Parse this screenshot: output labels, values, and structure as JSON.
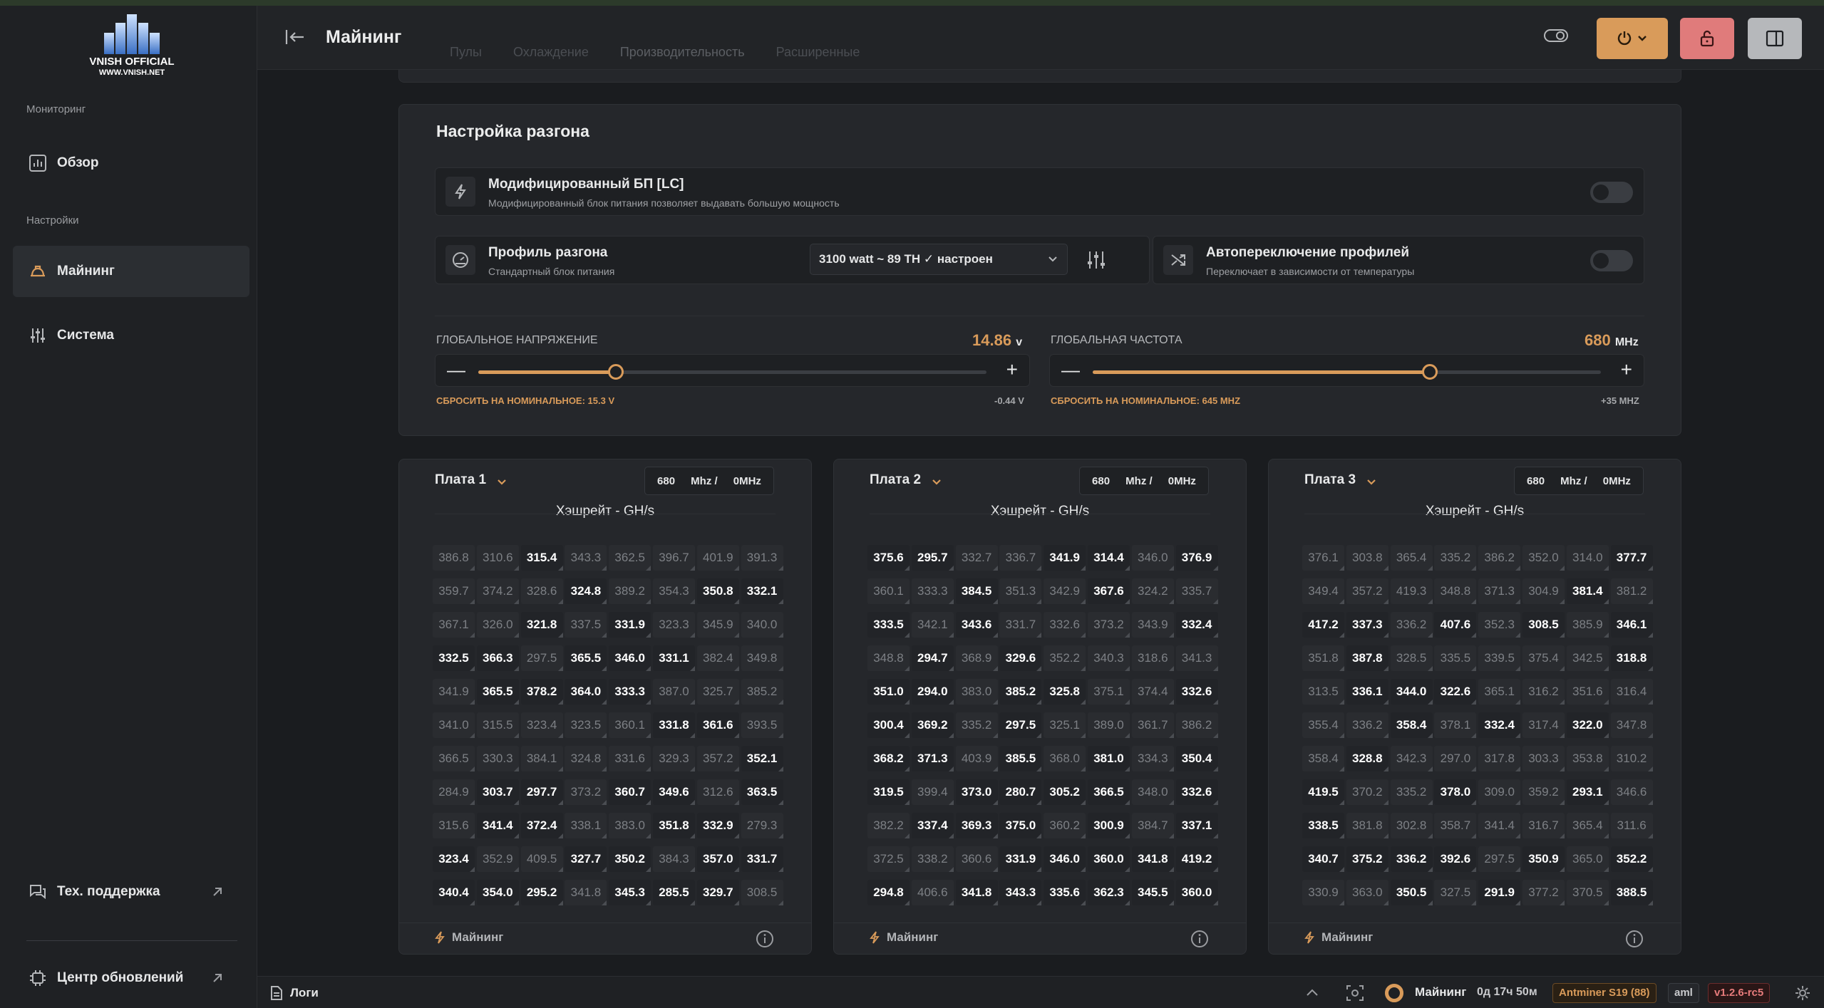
{
  "logo": {
    "line1": "VNISH OFFICIAL",
    "line2": "WWW.VNISH.NET"
  },
  "sidebar": {
    "section_monitoring": "Мониторинг",
    "item_overview": "Обзор",
    "section_settings": "Настройки",
    "item_mining": "Майнинг",
    "item_system": "Система",
    "item_support": "Тех. поддержка",
    "item_updates": "Центр обновлений"
  },
  "header": {
    "title": "Майнинг",
    "tabs": [
      "Пулы",
      "Охлаждение",
      "Производительность",
      "Расширенные"
    ]
  },
  "oc": {
    "title": "Настройка разгона",
    "psu_title": "Модифицированный БП [LC]",
    "psu_desc": "Модифицированный блок питания позволяет выдавать большую мощность",
    "profile_title": "Профиль разгона",
    "profile_desc": "Стандартный блок питания",
    "profile_value": "3100 watt ~ 89 TH ✓ настроен",
    "auto_title": "Автопереключение профилей",
    "auto_desc": "Переключает в зависимости от температуры",
    "voltage_label": "ГЛОБАЛЬНОЕ НАПРЯЖЕНИЕ",
    "voltage_value": "14.86",
    "voltage_unit": "v",
    "voltage_fill": 0.27,
    "voltage_reset": "СБРОСИТЬ НА НОМИНАЛЬНОЕ: 15.3 V",
    "voltage_delta": "-0.44 V",
    "freq_label": "ГЛОБАЛЬНАЯ ЧАСТОТА",
    "freq_value": "680",
    "freq_unit": "MHz",
    "freq_fill": 0.664,
    "freq_reset": "СБРОСИТЬ НА НОМИНАЛЬНОЕ: 645 MHZ",
    "freq_delta": "+35 MHZ"
  },
  "boards": [
    {
      "name": "Плата 1",
      "freq": "680",
      "freq_unit": "Mhz /",
      "offset": "0MHz",
      "subtitle": "Хэшрейт - GH/s",
      "footer": "Майнинг",
      "chips": [
        [
          "386.8",
          "310.6",
          "315.4",
          "343.3",
          "362.5",
          "396.7",
          "401.9",
          "391.3"
        ],
        [
          "359.7",
          "374.2",
          "328.6",
          "324.8",
          "389.2",
          "354.3",
          "350.8",
          "332.1"
        ],
        [
          "367.1",
          "326.0",
          "321.8",
          "337.5",
          "331.9",
          "323.3",
          "345.9",
          "340.0"
        ],
        [
          "332.5",
          "366.3",
          "297.5",
          "365.5",
          "346.0",
          "331.1",
          "382.4",
          "349.8"
        ],
        [
          "341.9",
          "365.5",
          "378.2",
          "364.0",
          "333.3",
          "387.0",
          "325.7",
          "385.2"
        ],
        [
          "341.0",
          "315.5",
          "323.4",
          "323.5",
          "360.1",
          "331.8",
          "361.6",
          "393.5"
        ],
        [
          "366.5",
          "330.3",
          "384.1",
          "324.8",
          "331.6",
          "329.3",
          "357.2",
          "352.1"
        ],
        [
          "284.9",
          "303.7",
          "297.7",
          "373.2",
          "360.7",
          "349.6",
          "312.6",
          "363.5"
        ],
        [
          "315.6",
          "341.4",
          "372.4",
          "338.1",
          "383.0",
          "351.8",
          "332.9",
          "279.3"
        ],
        [
          "323.4",
          "352.9",
          "409.5",
          "327.7",
          "350.2",
          "384.3",
          "357.0",
          "331.7"
        ],
        [
          "340.4",
          "354.0",
          "295.2",
          "341.8",
          "345.3",
          "285.5",
          "329.7",
          "308.5"
        ]
      ],
      "bold": [
        [
          0,
          0,
          1,
          0,
          0,
          0,
          0,
          0
        ],
        [
          0,
          0,
          0,
          1,
          0,
          0,
          1,
          1
        ],
        [
          0,
          0,
          1,
          0,
          1,
          0,
          0,
          0
        ],
        [
          1,
          1,
          0,
          1,
          1,
          1,
          0,
          0
        ],
        [
          0,
          1,
          1,
          1,
          1,
          0,
          0,
          0
        ],
        [
          0,
          0,
          0,
          0,
          0,
          1,
          1,
          0
        ],
        [
          0,
          0,
          0,
          0,
          0,
          0,
          0,
          1
        ],
        [
          0,
          1,
          1,
          0,
          1,
          1,
          0,
          1
        ],
        [
          0,
          1,
          1,
          0,
          0,
          1,
          1,
          0
        ],
        [
          1,
          0,
          0,
          1,
          1,
          0,
          1,
          1
        ],
        [
          1,
          1,
          1,
          0,
          1,
          1,
          1,
          0
        ]
      ]
    },
    {
      "name": "Плата 2",
      "freq": "680",
      "freq_unit": "Mhz /",
      "offset": "0MHz",
      "subtitle": "Хэшрейт - GH/s",
      "footer": "Майнинг",
      "chips": [
        [
          "375.6",
          "295.7",
          "332.7",
          "336.7",
          "341.9",
          "314.4",
          "346.0",
          "376.9"
        ],
        [
          "360.1",
          "333.3",
          "384.5",
          "351.3",
          "342.9",
          "367.6",
          "324.2",
          "335.7"
        ],
        [
          "333.5",
          "342.1",
          "343.6",
          "331.7",
          "332.6",
          "373.2",
          "343.9",
          "332.4"
        ],
        [
          "348.8",
          "294.7",
          "368.9",
          "329.6",
          "352.2",
          "340.3",
          "318.6",
          "341.3"
        ],
        [
          "351.0",
          "294.0",
          "383.0",
          "385.2",
          "325.8",
          "375.1",
          "374.4",
          "332.6"
        ],
        [
          "300.4",
          "369.2",
          "335.2",
          "297.5",
          "325.1",
          "389.0",
          "361.7",
          "386.2"
        ],
        [
          "368.2",
          "371.3",
          "403.9",
          "385.5",
          "368.0",
          "381.0",
          "334.3",
          "350.4"
        ],
        [
          "319.5",
          "399.4",
          "373.0",
          "280.7",
          "305.2",
          "366.5",
          "348.0",
          "332.6"
        ],
        [
          "382.2",
          "337.4",
          "369.3",
          "375.0",
          "360.2",
          "300.9",
          "384.7",
          "337.1"
        ],
        [
          "372.5",
          "338.2",
          "360.6",
          "331.9",
          "346.0",
          "360.0",
          "341.8",
          "419.2"
        ],
        [
          "294.8",
          "406.6",
          "341.8",
          "343.3",
          "335.6",
          "362.3",
          "345.5",
          "360.0"
        ]
      ],
      "bold": [
        [
          1,
          1,
          0,
          0,
          1,
          1,
          0,
          1
        ],
        [
          0,
          0,
          1,
          0,
          0,
          1,
          0,
          0
        ],
        [
          1,
          0,
          1,
          0,
          0,
          0,
          0,
          1
        ],
        [
          0,
          1,
          0,
          1,
          0,
          0,
          0,
          0
        ],
        [
          1,
          1,
          0,
          1,
          1,
          0,
          0,
          1
        ],
        [
          1,
          1,
          0,
          1,
          0,
          0,
          0,
          0
        ],
        [
          1,
          1,
          0,
          1,
          0,
          1,
          0,
          1
        ],
        [
          1,
          0,
          1,
          1,
          1,
          1,
          0,
          1
        ],
        [
          0,
          1,
          1,
          1,
          0,
          1,
          0,
          1
        ],
        [
          0,
          0,
          0,
          1,
          1,
          1,
          1,
          1
        ],
        [
          1,
          0,
          1,
          1,
          1,
          1,
          1,
          1
        ]
      ]
    },
    {
      "name": "Плата 3",
      "freq": "680",
      "freq_unit": "Mhz /",
      "offset": "0MHz",
      "subtitle": "Хэшрейт - GH/s",
      "footer": "Майнинг",
      "chips": [
        [
          "376.1",
          "303.8",
          "365.4",
          "335.2",
          "386.2",
          "352.0",
          "314.0",
          "377.7"
        ],
        [
          "349.4",
          "357.2",
          "419.3",
          "348.8",
          "371.3",
          "304.9",
          "381.4",
          "381.2"
        ],
        [
          "417.2",
          "337.3",
          "336.2",
          "407.6",
          "352.3",
          "308.5",
          "385.9",
          "346.1"
        ],
        [
          "351.8",
          "387.8",
          "328.5",
          "335.5",
          "339.5",
          "375.4",
          "342.5",
          "318.8"
        ],
        [
          "313.5",
          "336.1",
          "344.0",
          "322.6",
          "365.1",
          "316.2",
          "351.6",
          "316.4"
        ],
        [
          "355.4",
          "336.2",
          "358.4",
          "378.1",
          "332.4",
          "317.4",
          "322.0",
          "347.8"
        ],
        [
          "358.4",
          "328.8",
          "342.3",
          "297.0",
          "317.8",
          "303.3",
          "353.8",
          "310.2"
        ],
        [
          "419.5",
          "370.2",
          "335.2",
          "378.0",
          "309.0",
          "359.2",
          "293.1",
          "346.6"
        ],
        [
          "338.5",
          "381.8",
          "302.8",
          "358.7",
          "341.4",
          "316.7",
          "365.4",
          "311.6"
        ],
        [
          "340.7",
          "375.2",
          "336.2",
          "392.6",
          "297.5",
          "350.9",
          "365.0",
          "352.2"
        ],
        [
          "330.9",
          "363.0",
          "350.5",
          "327.5",
          "291.9",
          "377.2",
          "370.5",
          "388.5"
        ]
      ],
      "bold": [
        [
          0,
          0,
          0,
          0,
          0,
          0,
          0,
          1
        ],
        [
          0,
          0,
          0,
          0,
          0,
          0,
          1,
          0
        ],
        [
          1,
          1,
          0,
          1,
          0,
          1,
          0,
          1
        ],
        [
          0,
          1,
          0,
          0,
          0,
          0,
          0,
          1
        ],
        [
          0,
          1,
          1,
          1,
          0,
          0,
          0,
          0
        ],
        [
          0,
          0,
          1,
          0,
          1,
          0,
          1,
          0
        ],
        [
          0,
          1,
          0,
          0,
          0,
          0,
          0,
          0
        ],
        [
          1,
          0,
          0,
          1,
          0,
          0,
          1,
          0
        ],
        [
          1,
          0,
          0,
          0,
          0,
          0,
          0,
          0
        ],
        [
          1,
          1,
          1,
          1,
          0,
          1,
          0,
          1
        ],
        [
          0,
          0,
          1,
          0,
          1,
          0,
          0,
          1
        ]
      ]
    }
  ],
  "status": {
    "logs": "Логи",
    "state": "Майнинг",
    "uptime": "0д 17ч 50м",
    "model": "Antminer S19 (88)",
    "platform": "aml",
    "version": "v1.2.6-rc5"
  }
}
